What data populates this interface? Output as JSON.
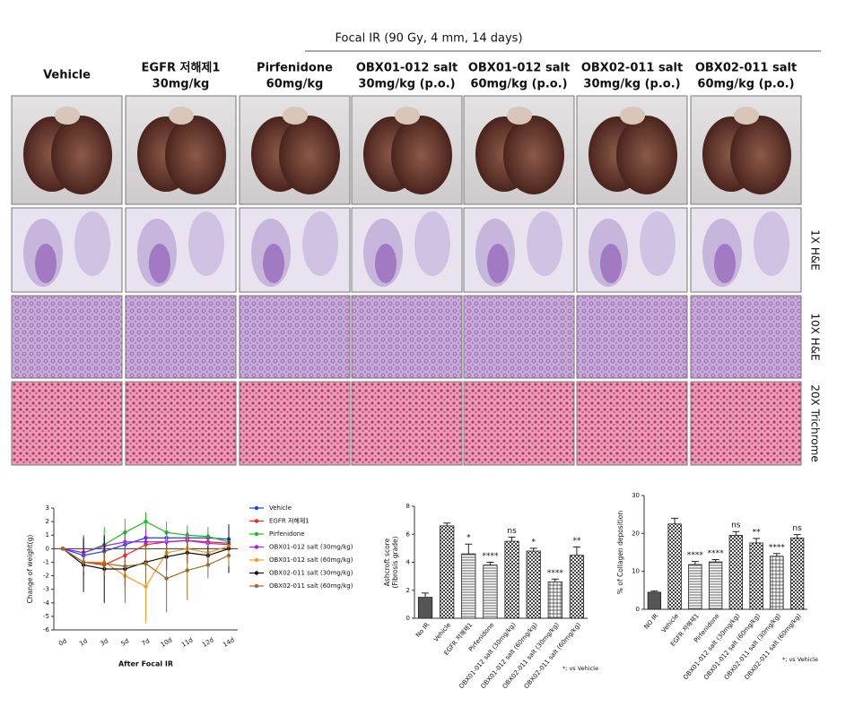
{
  "header": {
    "title": "Focal IR (90 Gy, 4 mm, 14 days)",
    "columns": [
      [
        "Vehicle"
      ],
      [
        "EGFR 저해제1",
        "30mg/kg"
      ],
      [
        "Pirfenidone",
        "60mg/kg"
      ],
      [
        "OBX01-012 salt",
        "30mg/kg (p.o.)"
      ],
      [
        "OBX01-012 salt",
        "60mg/kg (p.o.)"
      ],
      [
        "OBX02-011 salt",
        "30mg/kg (p.o.)"
      ],
      [
        "OBX02-011 salt",
        "60mg/kg (p.o.)"
      ]
    ],
    "row_labels": [
      "1X H&E",
      "10X H&E",
      "20X Trichrome"
    ]
  },
  "chart_data": [
    {
      "type": "line",
      "xlabel": "After Focal IR",
      "ylabel": "Change of weight(g)",
      "categories": [
        "0d",
        "1d",
        "3d",
        "5d",
        "7d",
        "10d",
        "11d",
        "12d",
        "14d"
      ],
      "ylim": [
        -6,
        3
      ],
      "yticks": [
        -6,
        -5,
        -4,
        -3,
        -2,
        -1,
        0,
        1,
        2,
        3
      ],
      "series": [
        {
          "name": "Vehicle",
          "color": "#1f3fff",
          "values": [
            0,
            -0.5,
            -0.2,
            0.3,
            0.8,
            0.8,
            0.8,
            0.8,
            0.7
          ],
          "errors": [
            0.1,
            1.5,
            1.0,
            0.8,
            0.6,
            0.5,
            0.5,
            0.4,
            0.5
          ]
        },
        {
          "name": "EGFR 저해제1",
          "color": "#ff1f1f",
          "values": [
            0,
            -1,
            -1.2,
            -0.5,
            0.3,
            0.5,
            0.6,
            0.5,
            0.4
          ],
          "errors": [
            0.1,
            0.6,
            0.7,
            0.8,
            0.6,
            0.6,
            0.5,
            0.5,
            0.5
          ]
        },
        {
          "name": "Pirfenidone",
          "color": "#22bb22",
          "values": [
            0,
            -0.3,
            0.3,
            1.2,
            2,
            1.2,
            1,
            0.9,
            0.5
          ],
          "errors": [
            0.1,
            0.8,
            1.3,
            1.0,
            0.7,
            0.8,
            0.7,
            0.7,
            0.6
          ]
        },
        {
          "name": "OBX01-012 salt (30mg/kg)",
          "color": "#a020f0",
          "values": [
            0,
            -0.3,
            0.2,
            0.5,
            0.5,
            0.5,
            0.6,
            0.4,
            0.3
          ],
          "errors": [
            0.1,
            0.8,
            0.7,
            0.8,
            0.9,
            0.7,
            0.6,
            0.6,
            0.5
          ]
        },
        {
          "name": "OBX01-012 salt (60mg/kg)",
          "color": "#ff9922",
          "values": [
            0,
            -1,
            -1,
            -2,
            -2.8,
            -0.3,
            0,
            -0.3,
            0.2
          ],
          "errors": [
            0.1,
            1.0,
            1.2,
            1.5,
            2.7,
            1.3,
            1.0,
            0.8,
            0.6
          ]
        },
        {
          "name": "OBX02-011 salt (30mg/kg)",
          "color": "#111111",
          "values": [
            0,
            -1.2,
            -1.5,
            -1.5,
            -1,
            -0.6,
            -0.3,
            -0.5,
            0
          ],
          "errors": [
            0.1,
            2.0,
            2.5,
            1.3,
            1.3,
            1.0,
            0.8,
            0.7,
            1.8
          ]
        },
        {
          "name": "OBX02-011 salt (60mg/kg)",
          "color": "#9c6b2e",
          "values": [
            0,
            -1,
            -1.1,
            -1.3,
            -1.1,
            -2.2,
            -1.6,
            -1.2,
            -0.5
          ],
          "errors": [
            0.1,
            0.7,
            0.9,
            2.7,
            1.5,
            2.5,
            2.2,
            1.0,
            0.8
          ]
        }
      ]
    },
    {
      "type": "bar",
      "ylabel": [
        "Ashcroft score",
        "(Fibrosis grade)"
      ],
      "note": "*; vs Vehicle",
      "categories": [
        "No IR",
        "Vehicle",
        "EGFR 저해제1",
        "Pirfenidone",
        "OBX01-012 salt (30mg/kg)",
        "OBX01-012 salt (60mg/kg)",
        "OBX02-011 salt (30mg/kg)",
        "OBX02-011 salt (60mg/kg)"
      ],
      "values": [
        1.5,
        6.6,
        4.6,
        3.8,
        5.5,
        4.8,
        2.6,
        4.5
      ],
      "errors": [
        0.3,
        0.2,
        0.7,
        0.2,
        0.3,
        0.2,
        0.2,
        0.6
      ],
      "significance": [
        null,
        null,
        "*",
        "****",
        "ns",
        "*",
        "****",
        "**"
      ],
      "patterns": [
        "solid",
        "checker",
        "hlines",
        "hlines",
        "checker",
        "checker",
        "grid",
        "checker"
      ],
      "ylim": [
        0,
        8
      ],
      "yticks": [
        0,
        2,
        4,
        6,
        8
      ]
    },
    {
      "type": "bar",
      "ylabel": [
        "% of Collagen deposition"
      ],
      "note": "*; vs Vehicle",
      "categories": [
        "NO IR",
        "Vehicle",
        "EGFR 저해제1",
        "Pirfenidone",
        "OBX01-012 salt (30mg/kg)",
        "OBX01-012 salt (60mg/kg)",
        "OBX02-011 salt (30mg/kg)",
        "OBX02-011 salt (60mg/kg)"
      ],
      "values": [
        4.5,
        22.5,
        11.8,
        12.5,
        19.5,
        17.5,
        14,
        18.8
      ],
      "errors": [
        0.3,
        1.5,
        0.8,
        0.6,
        1,
        1.2,
        0.7,
        0.9
      ],
      "significance": [
        null,
        null,
        "****",
        "****",
        "ns",
        "**",
        "****",
        "ns"
      ],
      "patterns": [
        "solid",
        "checker",
        "hlines",
        "hlines",
        "checker",
        "checker",
        "grid",
        "checker"
      ],
      "ylim": [
        0,
        30
      ],
      "yticks": [
        0,
        10,
        20,
        30
      ]
    }
  ]
}
